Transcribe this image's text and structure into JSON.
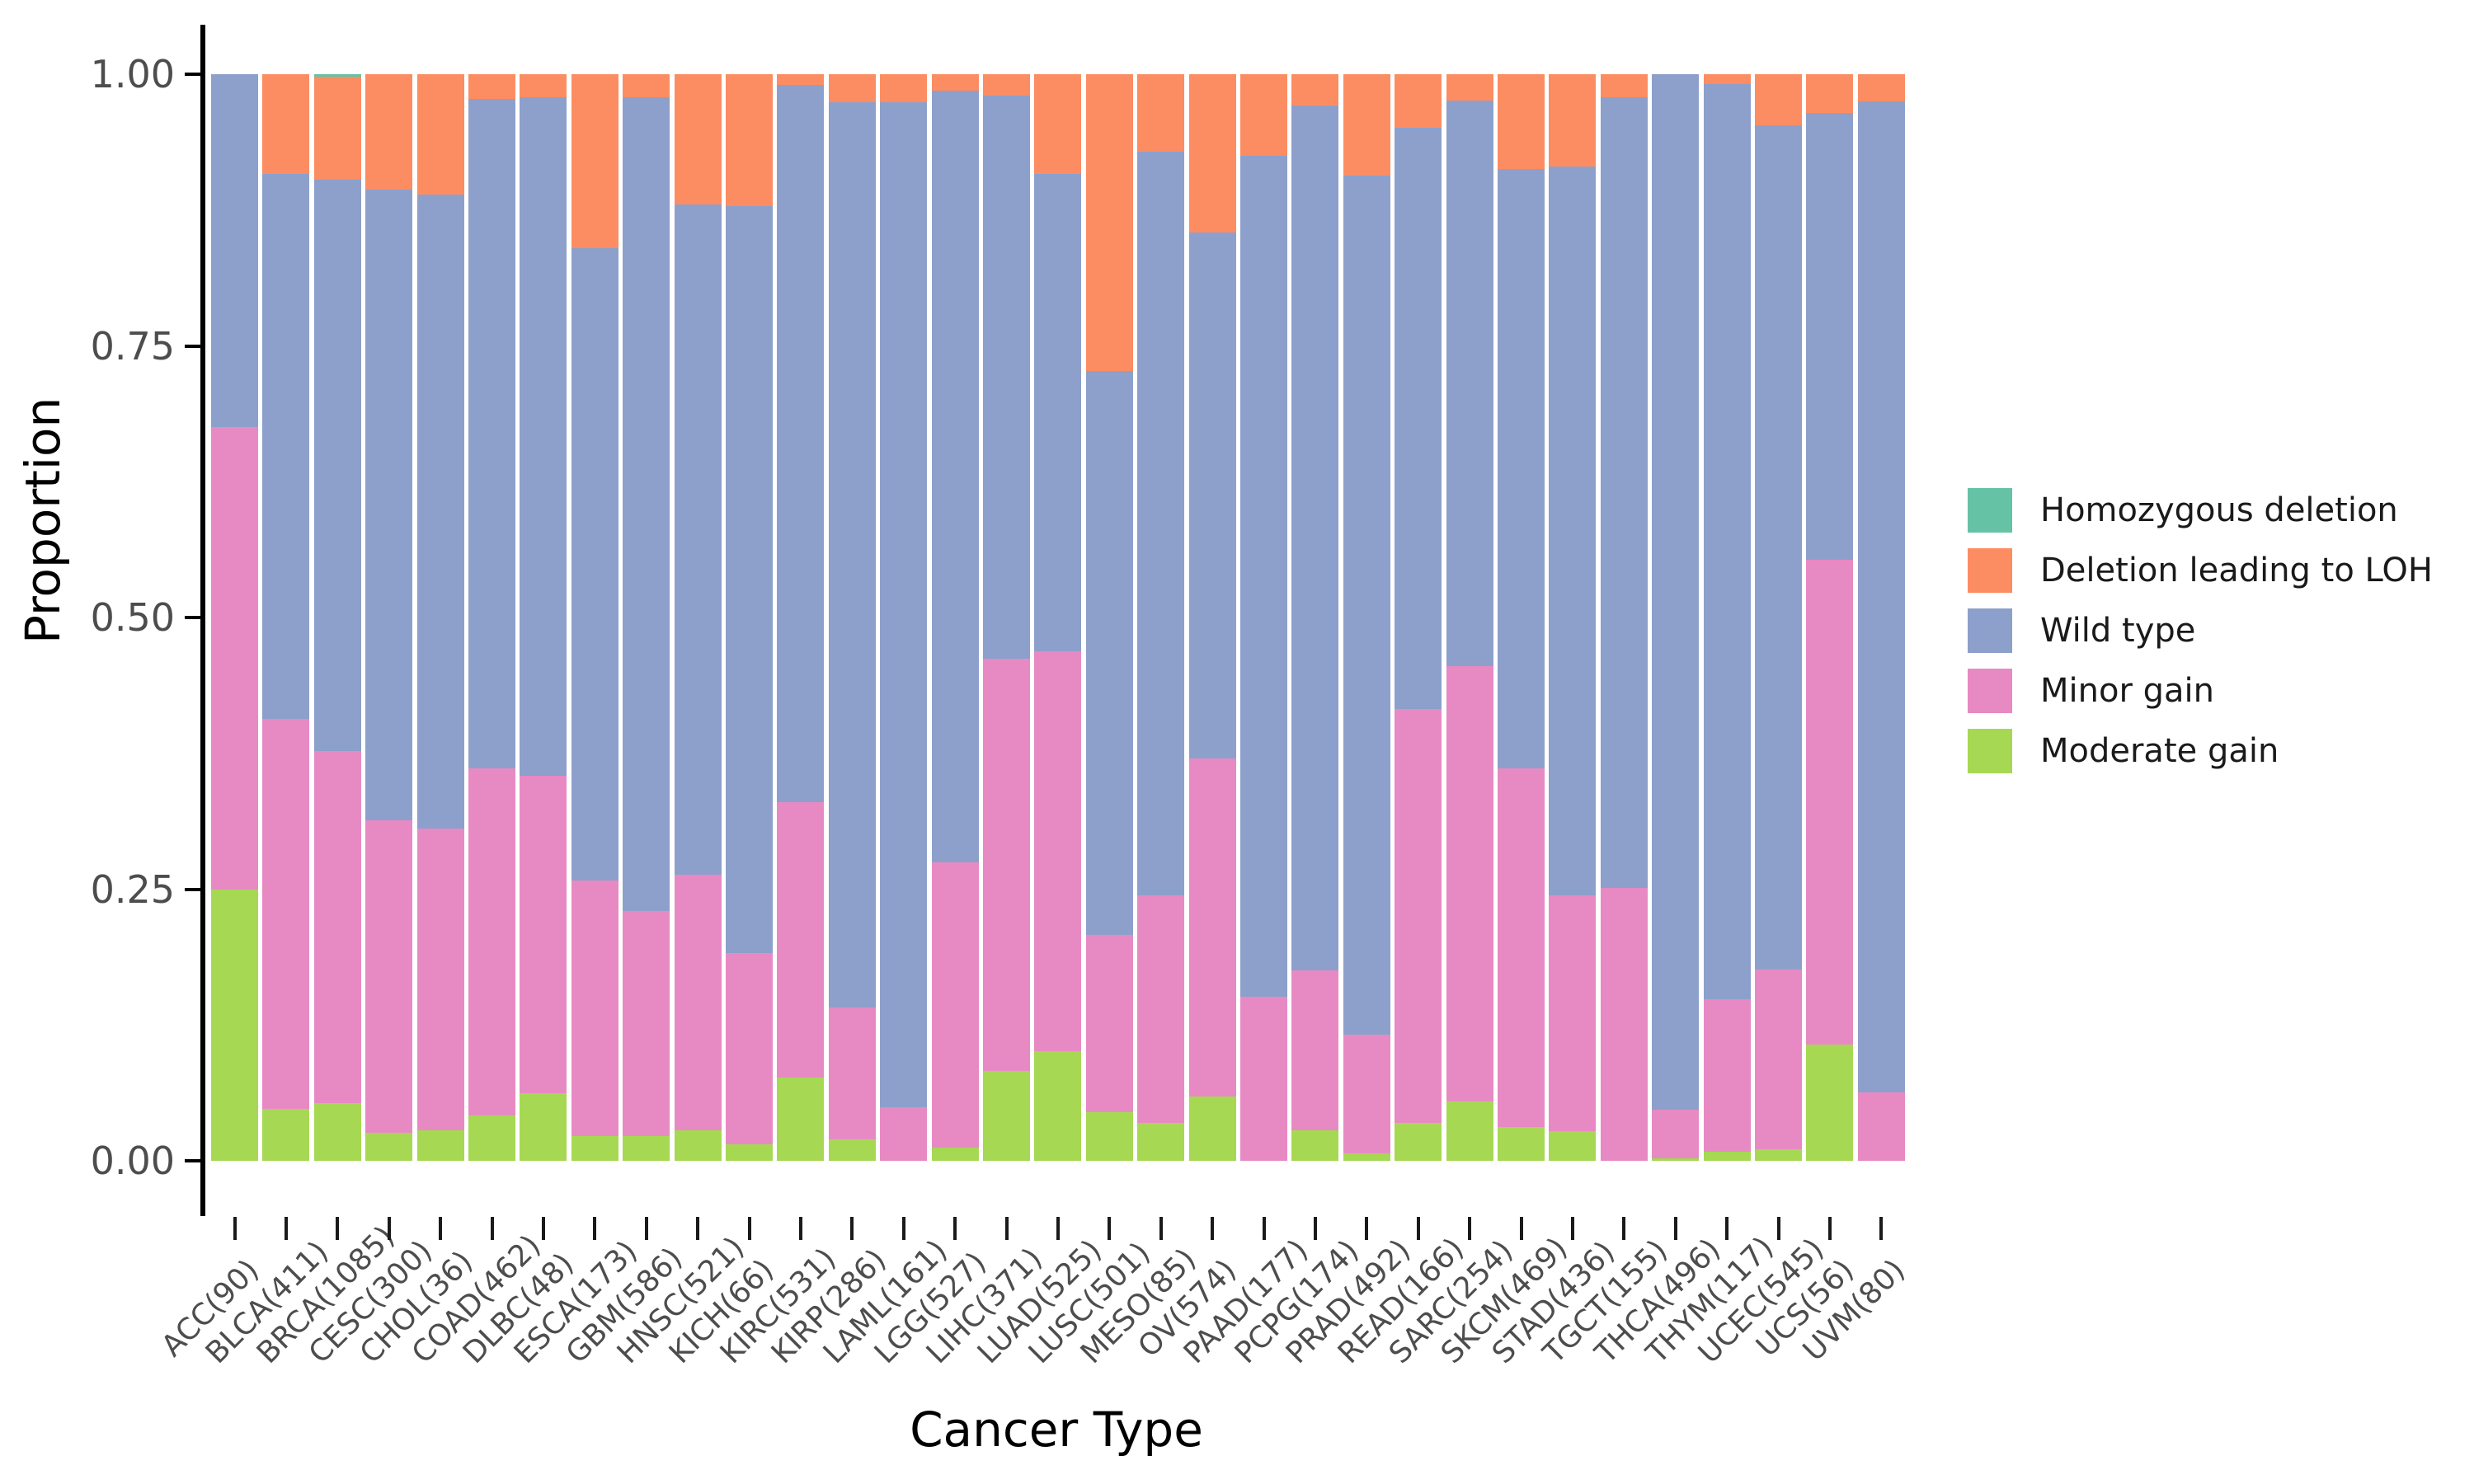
{
  "chart_data": {
    "type": "bar",
    "stacked": true,
    "orientation": "vertical",
    "title": "",
    "xlabel": "Cancer Type",
    "ylabel": "Proportion",
    "ylim": [
      0,
      1.0
    ],
    "yticks": [
      {
        "value": 0.0,
        "label": "0.00"
      },
      {
        "value": 0.25,
        "label": "0.25"
      },
      {
        "value": 0.5,
        "label": "0.50"
      },
      {
        "value": 0.75,
        "label": "0.75"
      },
      {
        "value": 1.0,
        "label": "1.00"
      }
    ],
    "grid": false,
    "legend_position": "right",
    "categories": [
      "ACC(90)",
      "BLCA(411)",
      "BRCA(1085)",
      "CESC(300)",
      "CHOL(36)",
      "COAD(462)",
      "DLBC(48)",
      "ESCA(173)",
      "GBM(586)",
      "HNSC(521)",
      "KICH(66)",
      "KIRC(531)",
      "KIRP(286)",
      "LAML(161)",
      "LGG(527)",
      "LIHC(371)",
      "LUAD(525)",
      "LUSC(501)",
      "MESO(85)",
      "OV(574)",
      "PAAD(177)",
      "PCPG(174)",
      "PRAD(492)",
      "READ(166)",
      "SARC(254)",
      "SKCM(469)",
      "STAD(436)",
      "TGCT(155)",
      "THCA(496)",
      "THYM(117)",
      "UCEC(545)",
      "UCS(56)",
      "UVM(80)"
    ],
    "series": [
      {
        "name": "Homozygous deletion",
        "color": "#66C2A5",
        "values": [
          0,
          0,
          0.002,
          0,
          0,
          0,
          0,
          0,
          0,
          0,
          0,
          0,
          0,
          0,
          0,
          0,
          0,
          0,
          0,
          0,
          0,
          0,
          0,
          0,
          0,
          0,
          0,
          0,
          0,
          0,
          0,
          0,
          0
        ]
      },
      {
        "name": "Deletion leading to LOH",
        "color": "#FC8D62",
        "values": [
          0,
          0.092,
          0.095,
          0.106,
          0.111,
          0.023,
          0.021,
          0.16,
          0.021,
          0.12,
          0.121,
          0.01,
          0.026,
          0.026,
          0.015,
          0.02,
          0.092,
          0.273,
          0.071,
          0.146,
          0.075,
          0.029,
          0.093,
          0.049,
          0.024,
          0.087,
          0.085,
          0.021,
          0,
          0.009,
          0.047,
          0.036,
          0.025
        ]
      },
      {
        "name": "Wild type",
        "color": "#8DA0CB",
        "values": [
          0.325,
          0.501,
          0.526,
          0.581,
          0.583,
          0.616,
          0.625,
          0.582,
          0.749,
          0.617,
          0.688,
          0.66,
          0.833,
          0.925,
          0.71,
          0.518,
          0.439,
          0.519,
          0.685,
          0.484,
          0.774,
          0.796,
          0.791,
          0.535,
          0.521,
          0.552,
          0.671,
          0.728,
          0.953,
          0.842,
          0.777,
          0.411,
          0.912
        ]
      },
      {
        "name": "Minor gain",
        "color": "#E78AC3",
        "values": [
          0.425,
          0.359,
          0.324,
          0.287,
          0.278,
          0.319,
          0.292,
          0.235,
          0.207,
          0.235,
          0.176,
          0.253,
          0.121,
          0.049,
          0.263,
          0.379,
          0.368,
          0.163,
          0.209,
          0.311,
          0.151,
          0.147,
          0.109,
          0.381,
          0.4,
          0.33,
          0.217,
          0.251,
          0.045,
          0.141,
          0.165,
          0.446,
          0.063
        ]
      },
      {
        "name": "Moderate gain",
        "color": "#A6D854",
        "values": [
          0.25,
          0.048,
          0.053,
          0.026,
          0.028,
          0.042,
          0.062,
          0.023,
          0.023,
          0.028,
          0.015,
          0.077,
          0.02,
          0,
          0.012,
          0.083,
          0.101,
          0.045,
          0.035,
          0.059,
          0,
          0.028,
          0.007,
          0.035,
          0.055,
          0.031,
          0.027,
          0,
          0.002,
          0.008,
          0.011,
          0.107,
          0
        ]
      }
    ]
  },
  "layout_colors": {
    "axis_line": "#000000",
    "tick_label": "#4d4d4d",
    "axis_title": "#000000",
    "background": "#ffffff"
  }
}
